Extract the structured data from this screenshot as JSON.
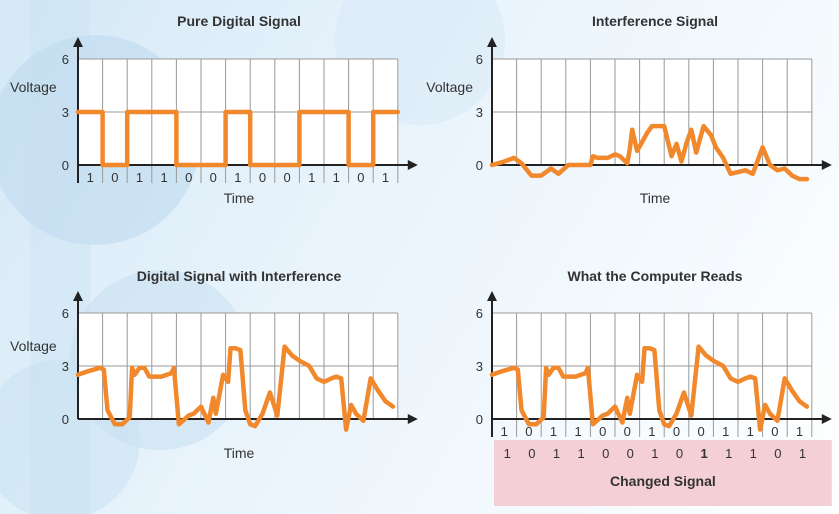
{
  "chart_data": [
    {
      "type": "line",
      "title": "Pure Digital Signal",
      "ylabel": "Voltage",
      "xlabel": "Time",
      "ylim": [
        0,
        6
      ],
      "yticks": [
        "0",
        "3",
        "6"
      ],
      "bits": [
        "1",
        "0",
        "1",
        "1",
        "0",
        "0",
        "1",
        "0",
        "0",
        "1",
        "1",
        "0",
        "1"
      ],
      "series_color": "#f2882c",
      "x": [
        0,
        1,
        1,
        2,
        2,
        4,
        4,
        6,
        6,
        7,
        7,
        9,
        9,
        11,
        11,
        12,
        12,
        13
      ],
      "y": [
        3,
        3,
        0,
        0,
        3,
        3,
        0,
        0,
        3,
        3,
        0,
        0,
        3,
        3,
        0,
        0,
        3,
        3
      ]
    },
    {
      "type": "line",
      "title": "Interference Signal",
      "ylabel": "Voltage",
      "xlabel": "Time",
      "ylim": [
        0,
        6
      ],
      "yticks": [
        "0",
        "3",
        "6"
      ],
      "series_color": "#f2882c",
      "x": [
        0,
        0.5,
        0.9,
        1.2,
        1.6,
        2.0,
        2.4,
        2.7,
        3.1,
        3.6,
        4.0,
        4.1,
        4.3,
        4.7,
        5.0,
        5.2,
        5.5,
        5.6,
        5.7,
        5.9,
        6.3,
        6.5,
        7.0,
        7.3,
        7.5,
        7.7,
        7.9,
        8.1,
        8.3,
        8.6,
        8.9,
        9.1,
        9.4,
        9.7,
        10.0,
        10.3,
        10.6,
        11.0,
        11.3,
        11.6,
        11.9,
        12.2,
        12.5,
        12.8
      ],
      "y": [
        0,
        0.2,
        0.4,
        0.1,
        -0.6,
        -0.6,
        -0.2,
        -0.5,
        0,
        0,
        0,
        0.5,
        0.4,
        0.4,
        0.6,
        0.5,
        0.1,
        0.9,
        2.0,
        0.8,
        1.8,
        2.2,
        2.2,
        0.5,
        1.2,
        0.2,
        1.2,
        2.0,
        0.7,
        2.2,
        1.7,
        1.0,
        0.4,
        -0.5,
        -0.4,
        -0.3,
        -0.5,
        1.0,
        0,
        -0.3,
        -0.2,
        -0.6,
        -0.8,
        -0.8
      ]
    },
    {
      "type": "line",
      "title": "Digital Signal with Interference",
      "ylabel": "Voltage",
      "xlabel": "Time",
      "ylim": [
        0,
        6
      ],
      "yticks": [
        "0",
        "3",
        "6"
      ],
      "series_color": "#f2882c",
      "x": [
        0,
        0.4,
        0.9,
        1.05,
        1.2,
        1.5,
        1.8,
        2.1,
        2.2,
        2.3,
        2.5,
        2.7,
        2.9,
        3.0,
        3.4,
        3.8,
        3.9,
        4.1,
        4.5,
        4.7,
        5.0,
        5.3,
        5.5,
        5.6,
        5.9,
        6.1,
        6.2,
        6.4,
        6.6,
        6.8,
        7.0,
        7.2,
        7.5,
        7.8,
        8.1,
        8.4,
        8.7,
        9.0,
        9.4,
        9.7,
        10.0,
        10.3,
        10.5,
        10.7,
        10.9,
        11.1,
        11.3,
        11.6,
        11.9,
        12.2,
        12.5,
        12.8
      ],
      "y": [
        2.5,
        2.7,
        2.9,
        2.8,
        0.5,
        -0.3,
        -0.3,
        0.1,
        2.9,
        2.5,
        2.9,
        2.9,
        2.4,
        2.4,
        2.4,
        2.6,
        2.9,
        -0.3,
        0.2,
        0.3,
        0.7,
        -0.2,
        1.2,
        0.3,
        2.5,
        2.1,
        4.0,
        4.0,
        3.9,
        0.5,
        -0.3,
        -0.4,
        0.3,
        1.5,
        0.2,
        4.1,
        3.6,
        3.3,
        3.0,
        2.3,
        2.1,
        2.3,
        2.4,
        2.3,
        -0.6,
        0.8,
        0.3,
        -0.1,
        2.3,
        1.6,
        1.0,
        0.7
      ]
    },
    {
      "type": "line",
      "title": "What the Computer Reads",
      "ylabel": "",
      "xlabel": "",
      "ylim": [
        0,
        6
      ],
      "yticks": [
        "0",
        "3",
        "6"
      ],
      "bits": [
        "1",
        "0",
        "1",
        "1",
        "0",
        "0",
        "1",
        "0",
        "0",
        "1",
        "1",
        "0",
        "1"
      ],
      "series_color": "#f2882c",
      "x": [
        0,
        0.4,
        0.9,
        1.05,
        1.2,
        1.5,
        1.8,
        2.1,
        2.2,
        2.3,
        2.5,
        2.7,
        2.9,
        3.0,
        3.4,
        3.8,
        3.9,
        4.1,
        4.5,
        4.7,
        5.0,
        5.3,
        5.5,
        5.6,
        5.9,
        6.1,
        6.2,
        6.4,
        6.6,
        6.8,
        7.0,
        7.2,
        7.5,
        7.8,
        8.1,
        8.4,
        8.7,
        9.0,
        9.4,
        9.7,
        10.0,
        10.3,
        10.5,
        10.7,
        10.9,
        11.1,
        11.3,
        11.6,
        11.9,
        12.2,
        12.5,
        12.8
      ],
      "y": [
        2.5,
        2.7,
        2.9,
        2.8,
        0.5,
        -0.3,
        -0.3,
        0.1,
        2.9,
        2.5,
        2.9,
        2.9,
        2.4,
        2.4,
        2.4,
        2.6,
        2.9,
        -0.3,
        0.2,
        0.3,
        0.7,
        -0.2,
        1.2,
        0.3,
        2.5,
        2.1,
        4.0,
        4.0,
        3.9,
        0.5,
        -0.3,
        -0.4,
        0.3,
        1.5,
        0.2,
        4.1,
        3.6,
        3.3,
        3.0,
        2.3,
        2.1,
        2.3,
        2.4,
        2.3,
        -0.6,
        0.8,
        0.3,
        -0.1,
        2.3,
        1.6,
        1.0,
        0.7
      ],
      "read_bits": [
        "1",
        "0",
        "1",
        "1",
        "0",
        "0",
        "1",
        "0",
        "1",
        "1",
        "1",
        "0",
        "1"
      ],
      "changed_bit_index": 8,
      "changed_color": "#c8102e",
      "changed_label": "Changed Signal",
      "changed_box_color": "#f4cfd6"
    }
  ]
}
